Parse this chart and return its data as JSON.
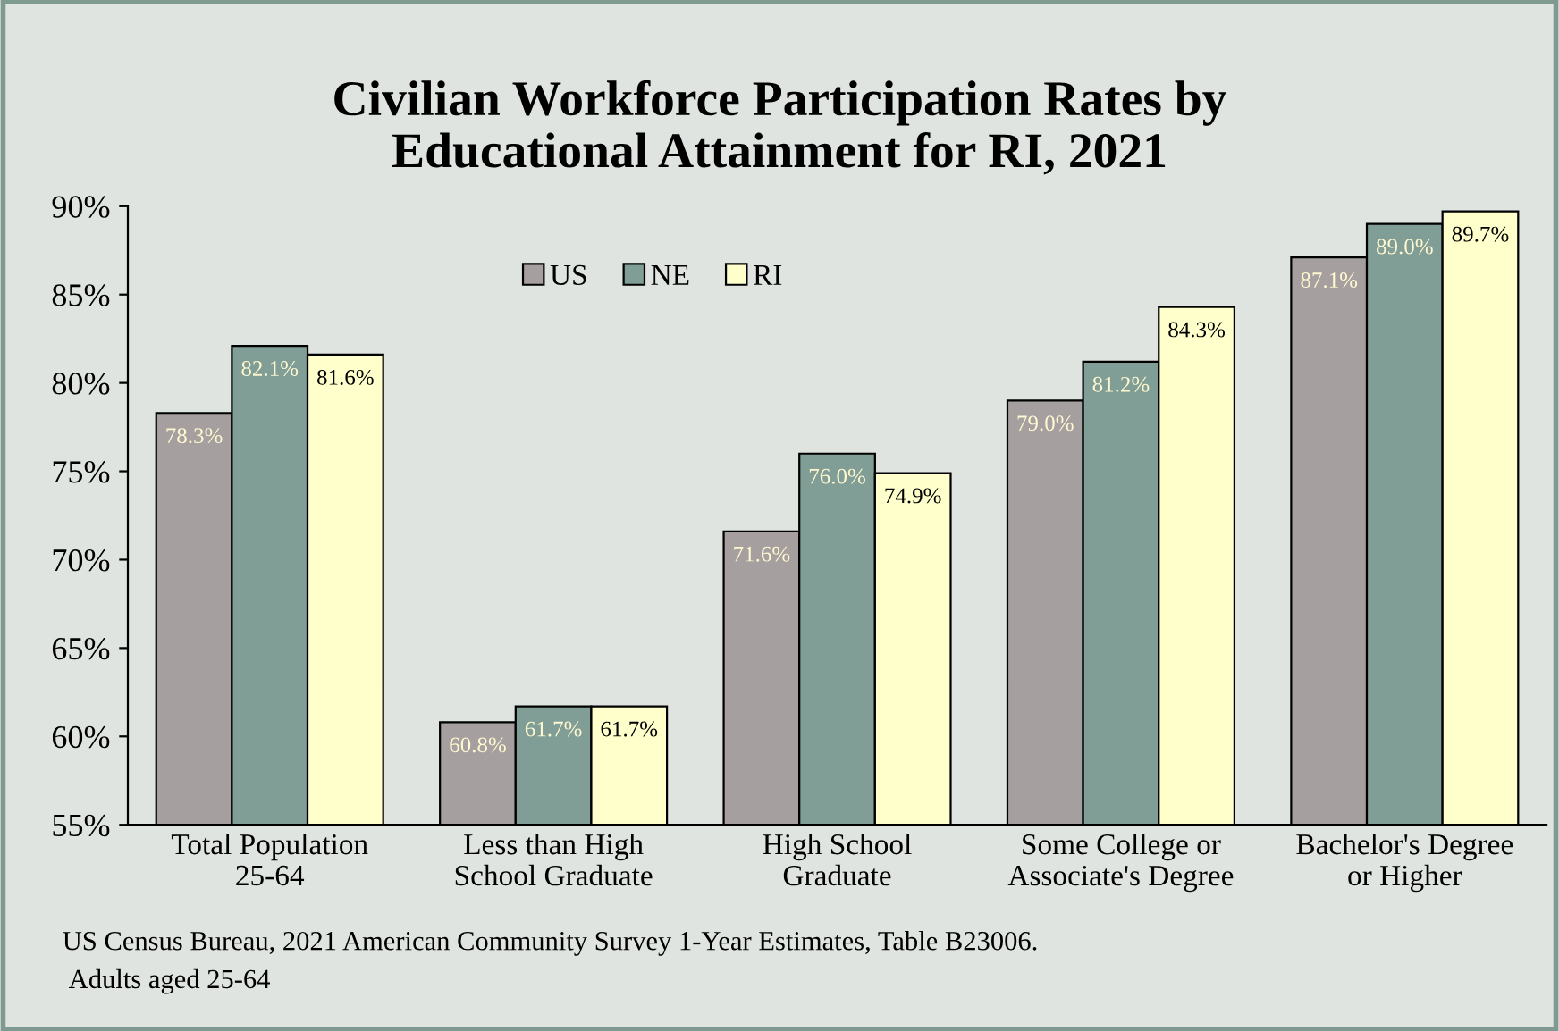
{
  "chart_data": {
    "type": "bar",
    "title": "Civilian Workforce Participation Rates by\nEducational Attainment for RI, 2021",
    "categories": [
      "Total Population\n25-64",
      "Less than High\nSchool Graduate",
      "High School\nGraduate",
      "Some College or\nAssociate's Degree",
      "Bachelor's Degree\nor Higher"
    ],
    "series": [
      {
        "name": "US",
        "color": "#a59f9f",
        "values": [
          78.3,
          60.8,
          71.6,
          79.0,
          87.1
        ],
        "value_labels": [
          "78.3%",
          "60.8%",
          "71.6%",
          "79.0%",
          "87.1%"
        ]
      },
      {
        "name": "NE",
        "color": "#819e96",
        "values": [
          82.1,
          61.7,
          76.0,
          81.2,
          89.0
        ],
        "value_labels": [
          "82.1%",
          "61.7%",
          "76.0%",
          "81.2%",
          "89.0%"
        ]
      },
      {
        "name": "RI",
        "color": "#ffffcc",
        "values": [
          81.6,
          61.7,
          74.9,
          84.3,
          89.7
        ],
        "value_labels": [
          "81.6%",
          "61.7%",
          "74.9%",
          "84.3%",
          "89.7%"
        ]
      }
    ],
    "ylim": [
      55,
      90
    ],
    "yticks": [
      {
        "value": 55,
        "label": "55%"
      },
      {
        "value": 60,
        "label": "60%"
      },
      {
        "value": 65,
        "label": "65%"
      },
      {
        "value": 70,
        "label": "70%"
      },
      {
        "value": 75,
        "label": "75%"
      },
      {
        "value": 80,
        "label": "80%"
      },
      {
        "value": 85,
        "label": "85%"
      },
      {
        "value": 90,
        "label": "90%"
      }
    ],
    "legend": "top",
    "grid": false,
    "annotations": [
      "US Census Bureau, 2021 American Community Survey 1-Year Estimates, Table B23006.",
      "Adults aged 25-64"
    ]
  }
}
